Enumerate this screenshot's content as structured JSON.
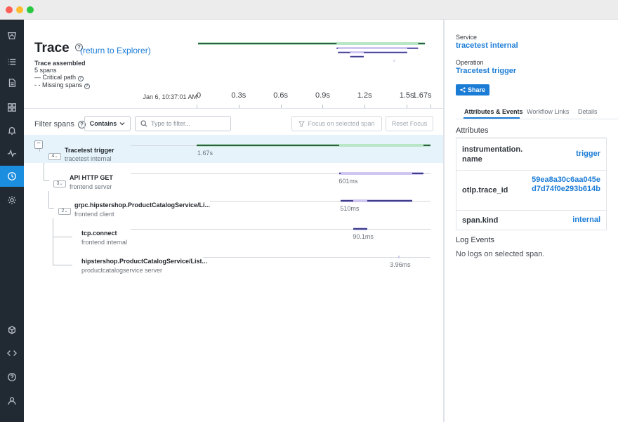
{
  "window": {
    "colors": {
      "close": "#fe5f57",
      "minimize": "#febc2e",
      "maximize": "#28c840"
    }
  },
  "sidebar": {
    "items": [
      {
        "icon": "logo-icon"
      },
      {
        "icon": "list-icon"
      },
      {
        "icon": "document-icon"
      },
      {
        "icon": "grid-icon"
      },
      {
        "icon": "bell-icon"
      },
      {
        "icon": "activity-icon"
      },
      {
        "icon": "clock-icon",
        "active": true
      },
      {
        "icon": "gear-icon"
      },
      {
        "icon": "cube-icon"
      },
      {
        "icon": "code-icon"
      },
      {
        "icon": "help-icon"
      },
      {
        "icon": "user-icon"
      }
    ],
    "colors": {
      "background": "#212933",
      "active": "#1b8ee0"
    }
  },
  "header": {
    "title": "Trace",
    "return_link": "(return to Explorer)",
    "status": "Trace assembled",
    "span_count": "5 spans",
    "critical_path": "Critical path",
    "missing_spans": "Missing spans",
    "timestamp": "Jan 6, 10:37:01 AM"
  },
  "timeline": {
    "ticks": [
      "0",
      "0.3s",
      "0.6s",
      "0.9s",
      "1.2s",
      "1.5s",
      "1.67s"
    ],
    "tick_values": [
      0,
      0.3,
      0.6,
      0.9,
      1.2,
      1.5,
      1.67
    ],
    "total_seconds": 1.67
  },
  "filter": {
    "label": "Filter spans",
    "mode": "Contains",
    "placeholder": "Type to filter...",
    "focus_label": "Focus on selected span",
    "reset_label": "Reset Focus"
  },
  "spans": [
    {
      "name": "Tracetest trigger",
      "service": "tracetest internal",
      "duration": "1.67s",
      "children": "4",
      "selected": true,
      "start_s": 0.0,
      "end_s": 1.67,
      "crit_start_s": 0.0,
      "crit_end_s": 1.02,
      "crit2_start_s": 1.62,
      "crit2_end_s": 1.67,
      "color": "#b9e6c6",
      "crit_color": "#2e5e45"
    },
    {
      "name": "API HTTP GET",
      "service": "frontend server",
      "duration": "601ms",
      "children": "3",
      "selected": false,
      "start_s": 1.02,
      "end_s": 1.62,
      "crit_start_s": 1.02,
      "crit_end_s": 1.03,
      "crit2_start_s": 1.54,
      "crit2_end_s": 1.62,
      "color": "#cfc6f1",
      "crit_color": "#3d3d8a"
    },
    {
      "name": "grpc.hipstershop.ProductCatalogService/Li...",
      "service": "frontend client",
      "duration": "510ms",
      "children": "2",
      "selected": false,
      "start_s": 1.03,
      "end_s": 1.54,
      "crit_start_s": 1.03,
      "crit_end_s": 1.12,
      "crit2_start_s": 1.22,
      "crit2_end_s": 1.54,
      "color": "#cfc6f1",
      "crit_color": "#3d3d8a"
    },
    {
      "name": "tcp.connect",
      "service": "frontend internal",
      "duration": "90.1ms",
      "children": "",
      "selected": false,
      "start_s": 1.12,
      "end_s": 1.22,
      "crit_start_s": 1.12,
      "crit_end_s": 1.22,
      "crit2_start_s": 0,
      "crit2_end_s": 0,
      "color": "#cfc6f1",
      "crit_color": "#3d3d8a"
    },
    {
      "name": "hipstershop.ProductCatalogService/List...",
      "service": "productcatalogservice server",
      "duration": "3.96ms",
      "children": "",
      "selected": false,
      "start_s": 1.44,
      "end_s": 1.444,
      "crit_start_s": 0,
      "crit_end_s": 0,
      "crit2_start_s": 0,
      "crit2_end_s": 0,
      "color": "#cfc6f1",
      "crit_color": "#3d3d8a"
    }
  ],
  "detail": {
    "service_label": "Service",
    "service_value": "tracetest internal",
    "operation_label": "Operation",
    "operation_value": "Tracetest trigger",
    "share_label": "Share",
    "tabs": [
      "Attributes & Events",
      "Workflow Links",
      "Details"
    ],
    "attributes_title": "Attributes",
    "attributes": [
      {
        "key": "instrumentation.\nname",
        "value": "trigger"
      },
      {
        "key": "otlp.trace_id",
        "value": "59ea8a30c6aa045ed7d74f0e293b614b"
      },
      {
        "key": "span.kind",
        "value": "internal"
      }
    ],
    "log_title": "Log Events",
    "log_empty": "No logs on selected span."
  }
}
